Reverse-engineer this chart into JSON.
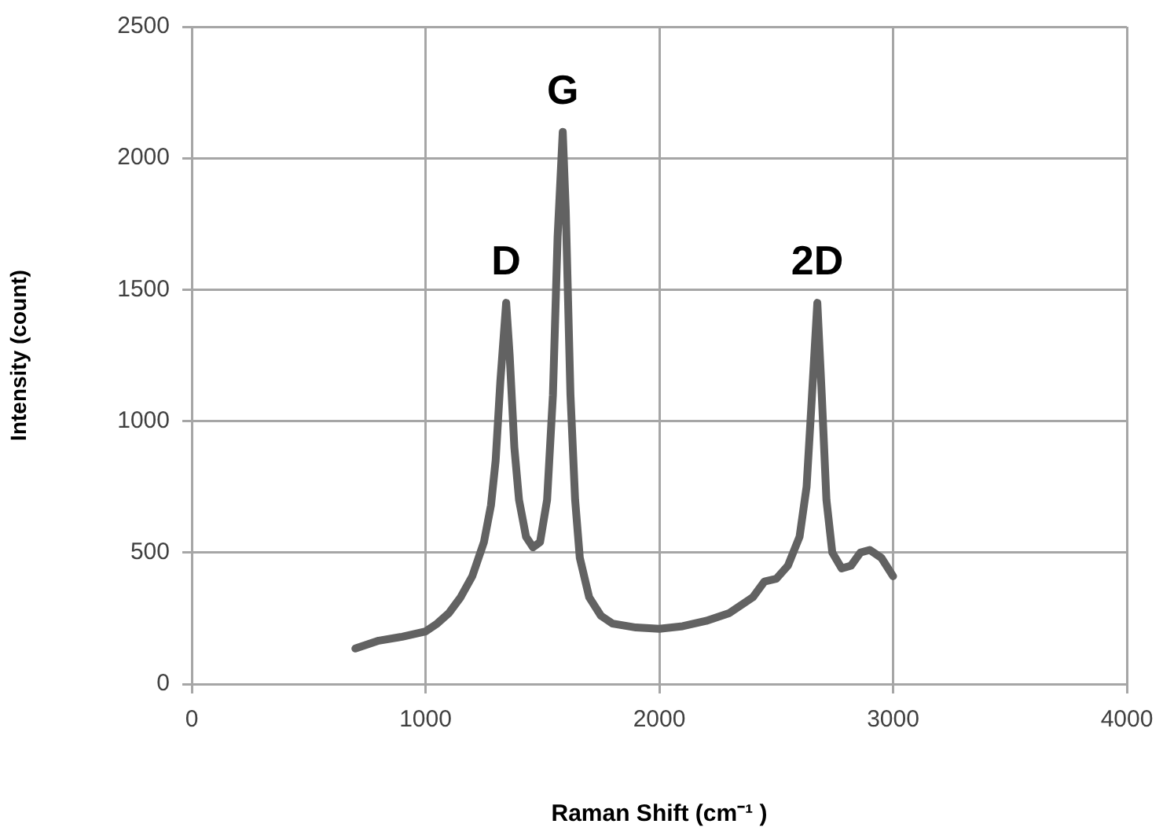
{
  "chart_data": {
    "type": "line",
    "xlabel": "Raman Shift (cm⁻¹ )",
    "ylabel": "Intensity (count)",
    "xlim": [
      0,
      4000
    ],
    "xticks": [
      0,
      1000,
      2000,
      3000,
      4000
    ],
    "ylim": [
      0,
      2500
    ],
    "yticks": [
      0,
      500,
      1000,
      1500,
      2000,
      2500
    ],
    "grid": true,
    "legend": false,
    "marker": "none",
    "line_style": "solid",
    "series": [
      {
        "color": "#626262",
        "x": [
          700,
          750,
          800,
          900,
          1000,
          1050,
          1100,
          1150,
          1200,
          1250,
          1280,
          1300,
          1320,
          1345,
          1360,
          1380,
          1400,
          1430,
          1460,
          1490,
          1520,
          1545,
          1565,
          1587,
          1600,
          1620,
          1640,
          1660,
          1700,
          1750,
          1800,
          1900,
          2000,
          2100,
          2200,
          2300,
          2400,
          2450,
          2500,
          2550,
          2600,
          2630,
          2650,
          2676,
          2695,
          2715,
          2740,
          2780,
          2820,
          2860,
          2900,
          2950,
          3000
        ],
        "values": [
          135,
          150,
          165,
          180,
          200,
          230,
          270,
          330,
          410,
          540,
          680,
          850,
          1150,
          1450,
          1250,
          900,
          700,
          560,
          520,
          540,
          700,
          1100,
          1700,
          2100,
          1800,
          1100,
          700,
          480,
          330,
          260,
          230,
          215,
          210,
          220,
          240,
          270,
          330,
          390,
          400,
          450,
          560,
          750,
          1050,
          1450,
          1100,
          700,
          500,
          440,
          450,
          500,
          510,
          480,
          410
        ]
      }
    ],
    "annotations": [
      {
        "text": "D",
        "x": 1345,
        "y": 1450
      },
      {
        "text": "G",
        "x": 1587,
        "y": 2100
      },
      {
        "text": "2D",
        "x": 2676,
        "y": 1450
      }
    ]
  }
}
